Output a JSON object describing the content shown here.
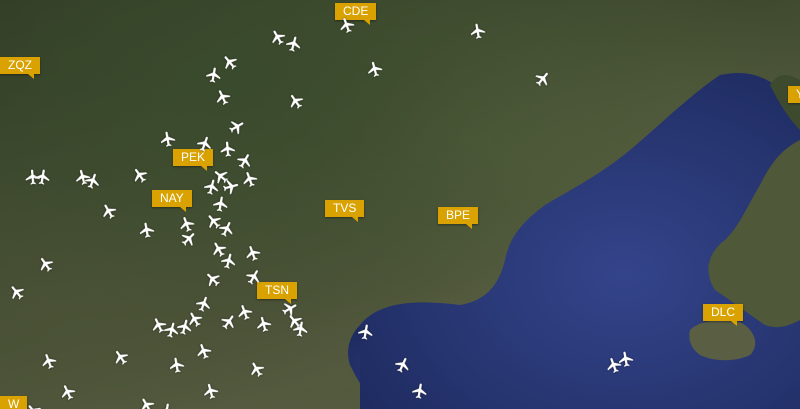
{
  "map": {
    "airports": [
      {
        "code": "CDE"
      },
      {
        "code": "ZQZ"
      },
      {
        "code": "PEK"
      },
      {
        "code": "NAY"
      },
      {
        "code": "TVS"
      },
      {
        "code": "BPE"
      },
      {
        "code": "TSN"
      },
      {
        "code": "DLC"
      },
      {
        "code": "Y"
      },
      {
        "code": "W"
      }
    ],
    "aircraft_icon": "airplane-icon",
    "colors": {
      "land": "#3f4a2f",
      "sea": "#2b3a7a",
      "label_bg": "#d9a200",
      "label_text": "#ffffff",
      "aircraft": "#ffffff"
    }
  }
}
